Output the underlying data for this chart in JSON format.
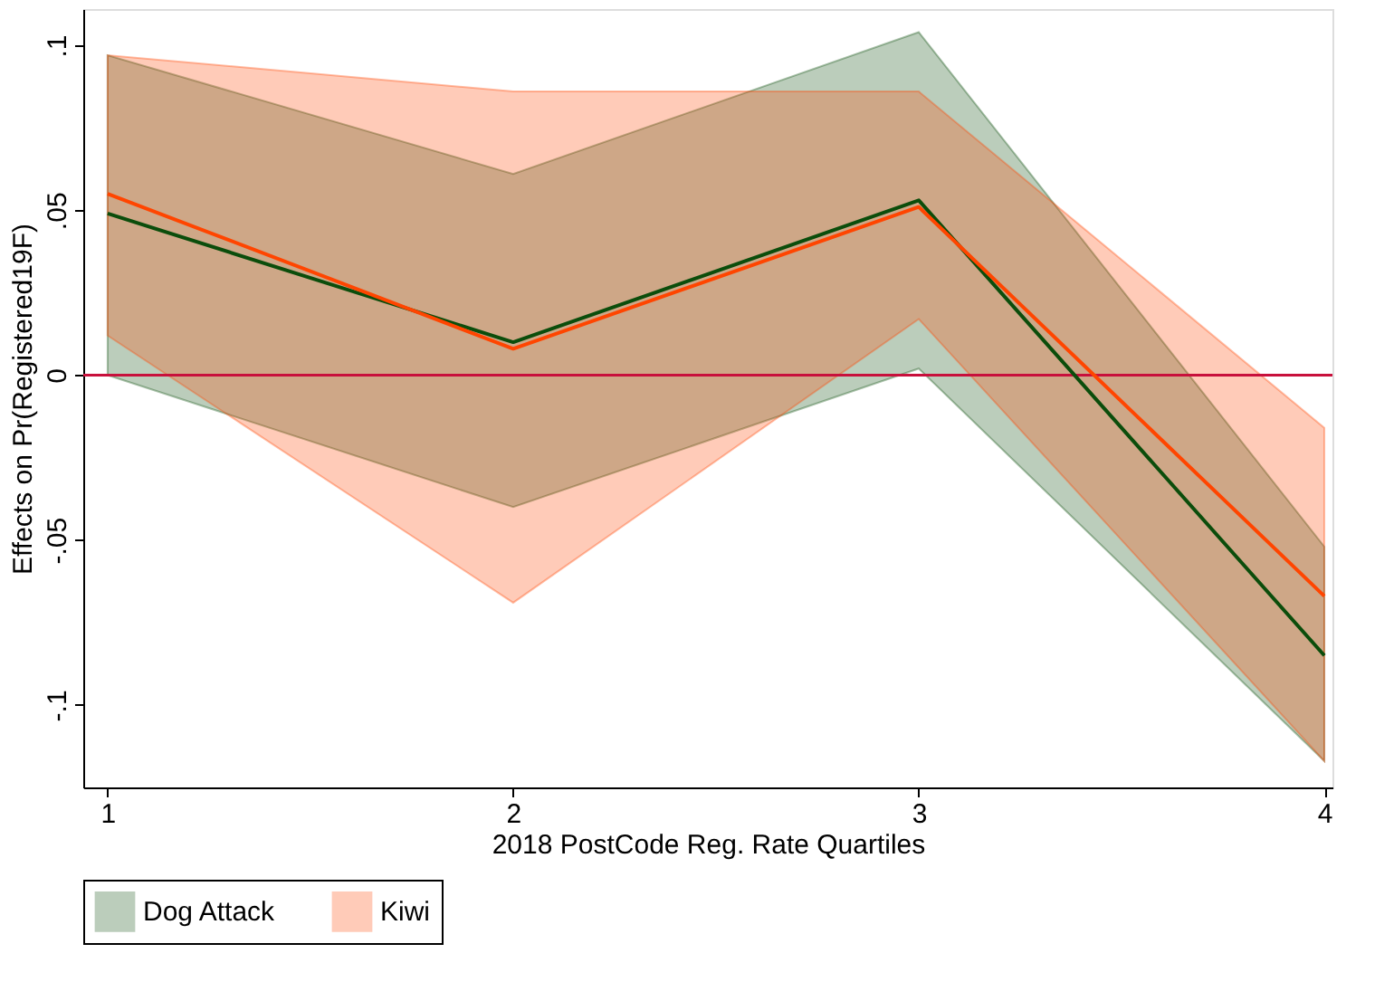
{
  "chart_data": {
    "type": "line",
    "xlabel": "2018 PostCode Reg. Rate Quartiles",
    "ylabel": "Effects on Pr(Registered19F)",
    "x": [
      1,
      2,
      3,
      4
    ],
    "series": [
      {
        "name": "Dog Attack",
        "color": "#0b4d0b",
        "values": [
          0.049,
          0.01,
          0.053,
          -0.085
        ],
        "lower": [
          0.0,
          -0.04,
          0.002,
          -0.117
        ],
        "upper": [
          0.097,
          0.061,
          0.104,
          -0.052
        ]
      },
      {
        "name": "Kiwi",
        "color": "#ff4500",
        "values": [
          0.055,
          0.008,
          0.051,
          -0.067
        ],
        "lower": [
          0.012,
          -0.069,
          0.017,
          -0.117
        ],
        "upper": [
          0.097,
          0.086,
          0.086,
          -0.016
        ]
      }
    ],
    "xlim": [
      0.94,
      4.02
    ],
    "ylim": [
      -0.125,
      0.111
    ],
    "xticks": [
      1,
      2,
      3,
      4
    ],
    "yticks": [
      {
        "value": -0.1,
        "label": "-.1"
      },
      {
        "value": -0.05,
        "label": "-.05"
      },
      {
        "value": 0,
        "label": "0"
      },
      {
        "value": 0.05,
        "label": ".05"
      },
      {
        "value": 0.1,
        "label": ".1"
      }
    ],
    "ref_lines": [
      {
        "axis": "y",
        "value": 0,
        "color": "#c8103c"
      }
    ],
    "grid": false,
    "legend": "bottom",
    "marker": "none",
    "line_style": "solid"
  }
}
